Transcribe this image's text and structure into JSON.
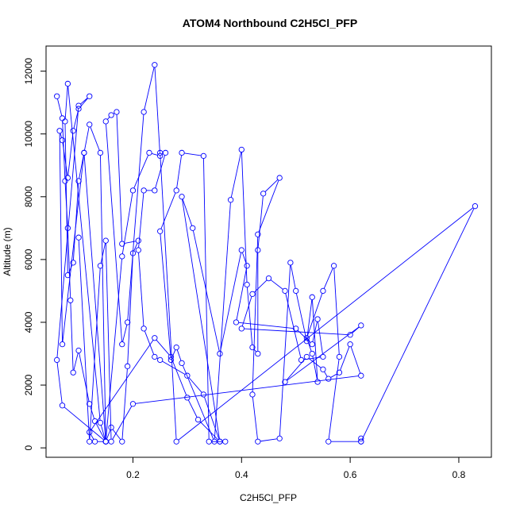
{
  "chart_data": {
    "type": "line",
    "title": "ATOM4 Northbound C2H5Cl_PFP",
    "xlabel": "C2H5Cl_PFP",
    "ylabel": "Altitude (m)",
    "xlim": [
      0.04,
      0.86
    ],
    "ylim": [
      -300,
      12800
    ],
    "x_ticks": [
      0.2,
      0.4,
      0.6,
      0.8
    ],
    "x_tick_labels": [
      "0.2",
      "0.4",
      "0.6",
      "0.8"
    ],
    "y_ticks": [
      0,
      2000,
      4000,
      6000,
      8000,
      10000,
      12000
    ],
    "y_tick_labels": [
      "0",
      "2000",
      "4000",
      "6000",
      "8000",
      "10000",
      "12000"
    ],
    "grid": false,
    "legend": "none",
    "series_color": "#0000ff",
    "series": [
      {
        "x": [
          0.06,
          0.07,
          0.075,
          0.08,
          0.085,
          0.09,
          0.1,
          0.12,
          0.13,
          0.15,
          0.07,
          0.06,
          0.1,
          0.12,
          0.1,
          0.09,
          0.08,
          0.07,
          0.065,
          0.07,
          0.11,
          0.15,
          0.14,
          0.12,
          0.11,
          0.1,
          0.09,
          0.08,
          0.075,
          0.08,
          0.14,
          0.15,
          0.16,
          0.18,
          0.19,
          0.2,
          0.21,
          0.18,
          0.17,
          0.16,
          0.15,
          0.18,
          0.19,
          0.22,
          0.24,
          0.25,
          0.23,
          0.2,
          0.18,
          0.15,
          0.13,
          0.12,
          0.24,
          0.27,
          0.3,
          0.32,
          0.36,
          0.37,
          0.34,
          0.33,
          0.29,
          0.28,
          0.25,
          0.27,
          0.28,
          0.29,
          0.35,
          0.38,
          0.4,
          0.41,
          0.42,
          0.43,
          0.43,
          0.44,
          0.47,
          0.43,
          0.42,
          0.43,
          0.47,
          0.49,
          0.5,
          0.52,
          0.53,
          0.54,
          0.53,
          0.52,
          0.55,
          0.57,
          0.58,
          0.56,
          0.62,
          0.62,
          0.62,
          0.83,
          0.28,
          0.25,
          0.26,
          0.24,
          0.22,
          0.21,
          0.22,
          0.24,
          0.25,
          0.3,
          0.33,
          0.36,
          0.29,
          0.31,
          0.36,
          0.4,
          0.41,
          0.39,
          0.5,
          0.53,
          0.54,
          0.55,
          0.51,
          0.48,
          0.45,
          0.42,
          0.4,
          0.6,
          0.62,
          0.48,
          0.52,
          0.55,
          0.56,
          0.58,
          0.6,
          0.62,
          0.2,
          0.16,
          0.15,
          0.14,
          0.12,
          0.1
        ],
        "y": [
          11200,
          10500,
          8500,
          7000,
          4700,
          2400,
          3100,
          1400,
          850,
          200,
          1350,
          2800,
          10900,
          11200,
          10800,
          10100,
          8600,
          9800,
          10100,
          3300,
          9400,
          200,
          9400,
          10300,
          9400,
          8500,
          5900,
          5500,
          10400,
          11600,
          800,
          200,
          650,
          200,
          2600,
          6200,
          6600,
          6500,
          10700,
          10600,
          10400,
          3300,
          4000,
          10700,
          12200,
          9300,
          9400,
          8200,
          6100,
          200,
          200,
          500,
          3500,
          2900,
          1600,
          900,
          200,
          200,
          200,
          9300,
          9400,
          8200,
          6900,
          2800,
          3200,
          2700,
          200,
          7900,
          9500,
          5200,
          3200,
          3000,
          6300,
          8100,
          8600,
          6800,
          1700,
          200,
          300,
          5900,
          5000,
          3400,
          4800,
          2100,
          3000,
          3500,
          5000,
          5800,
          2900,
          200,
          200,
          300,
          200,
          7700,
          200,
          9400,
          9400,
          8200,
          8200,
          6300,
          3800,
          2900,
          2800,
          2300,
          1700,
          200,
          8000,
          7000,
          3000,
          6300,
          5800,
          4000,
          3800,
          3300,
          4100,
          2900,
          2800,
          5000,
          5400,
          4900,
          3800,
          3600,
          3900,
          2100,
          2900,
          2500,
          2200,
          2400,
          3300,
          2300,
          1400,
          200,
          6600,
          5800,
          200,
          6700
        ]
      }
    ]
  }
}
